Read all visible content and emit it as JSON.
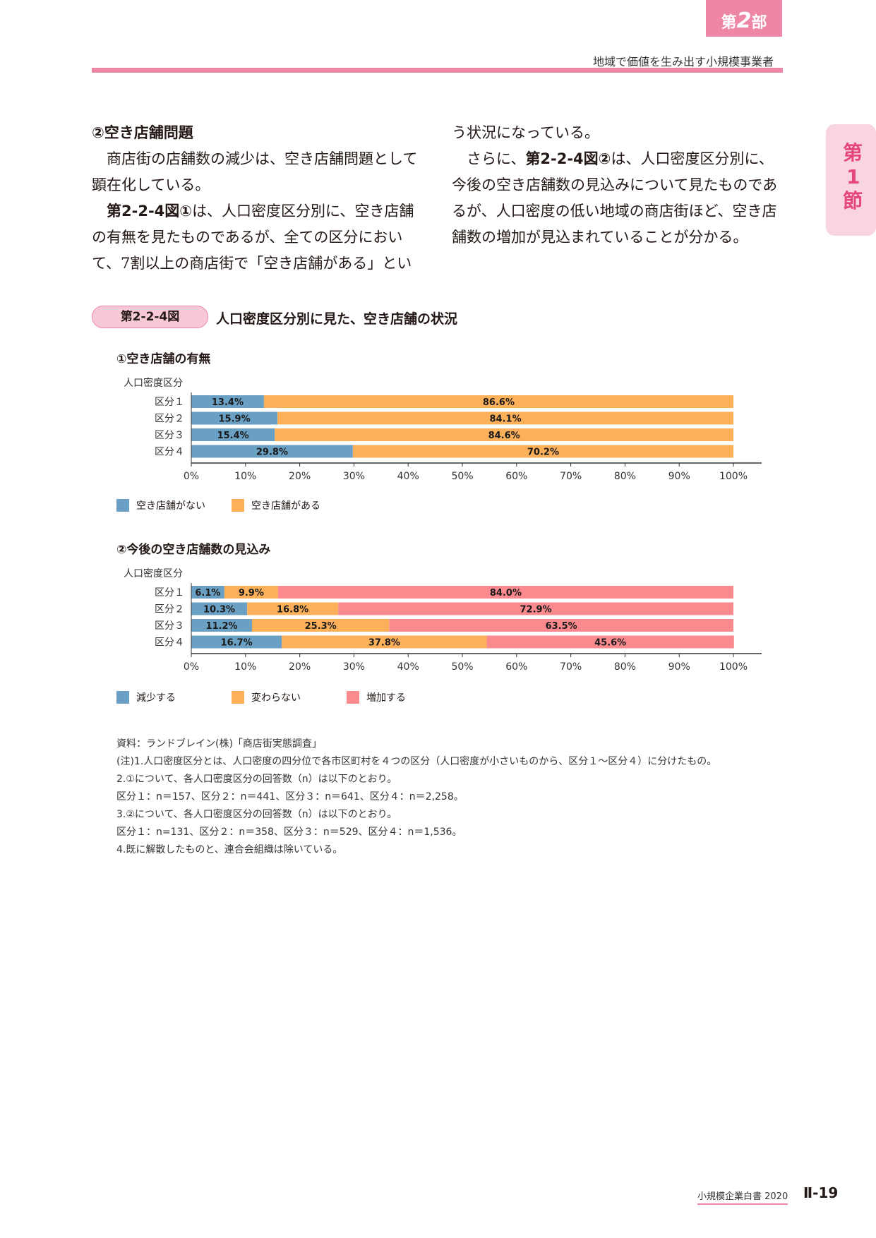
{
  "header": {
    "part_prefix": "第",
    "part_num": "2",
    "part_suffix": "部",
    "subtitle": "地域で価値を生み出す小規模事業者",
    "section_tab": [
      "第",
      "1",
      "節"
    ]
  },
  "body": {
    "left": {
      "heading": "②空き店舗問題",
      "p1": "商店街の店舗数の減少は、空き店舗問題として顕在化している。",
      "p2_ref": "第2-2-4図①",
      "p2": "は、人口密度区分別に、空き店舗の有無を見たものであるが、全ての区分において、7割以上の商店街で「空き店舗がある」とい"
    },
    "right": {
      "p1": "う状況になっている。",
      "p2_pre": "さらに、",
      "p2_ref": "第2-2-4図②",
      "p2": "は、人口密度区分別に、今後の空き店舗数の見込みについて見たものであるが、人口密度の低い地域の商店街ほど、空き店舗数の増加が見込まれていることが分かる。"
    }
  },
  "figure": {
    "badge": "第2-2-4図",
    "title": "人口密度区分別に見た、空き店舗の状況"
  },
  "chart_data": [
    {
      "type": "bar",
      "orientation": "horizontal",
      "stacked": true,
      "title": "①空き店舗の有無",
      "ylabel": "人口密度区分",
      "categories": [
        "区分１",
        "区分２",
        "区分３",
        "区分４"
      ],
      "series": [
        {
          "name": "空き店舗がない",
          "color": "#6aa0c4",
          "values": [
            13.4,
            15.9,
            15.4,
            29.8
          ]
        },
        {
          "name": "空き店舗がある",
          "color": "#fdb05a",
          "values": [
            86.6,
            84.1,
            84.6,
            70.2
          ]
        }
      ],
      "xticks": [
        "0%",
        "10%",
        "20%",
        "30%",
        "40%",
        "50%",
        "60%",
        "70%",
        "80%",
        "90%",
        "100%"
      ],
      "xlim": [
        0,
        100
      ],
      "legend": "bottom-left"
    },
    {
      "type": "bar",
      "orientation": "horizontal",
      "stacked": true,
      "title": "②今後の空き店舗数の見込み",
      "ylabel": "人口密度区分",
      "categories": [
        "区分１",
        "区分２",
        "区分３",
        "区分４"
      ],
      "series": [
        {
          "name": "減少する",
          "color": "#6aa0c4",
          "values": [
            6.1,
            10.3,
            11.2,
            16.7
          ]
        },
        {
          "name": "変わらない",
          "color": "#fdb05a",
          "values": [
            9.9,
            16.8,
            25.3,
            37.8
          ]
        },
        {
          "name": "増加する",
          "color": "#fb8a8e",
          "values": [
            84.0,
            72.9,
            63.5,
            45.6
          ]
        }
      ],
      "xticks": [
        "0%",
        "10%",
        "20%",
        "30%",
        "40%",
        "50%",
        "60%",
        "70%",
        "80%",
        "90%",
        "100%"
      ],
      "xlim": [
        0,
        100
      ],
      "legend": "bottom-left"
    }
  ],
  "notes": [
    "資料：ランドブレイン(株)「商店街実態調査」",
    "(注)1.人口密度区分とは、人口密度の四分位で各市区町村を４つの区分（人口密度が小さいものから、区分１～区分４）に分けたもの。",
    "2.①について、各人口密度区分の回答数（n）は以下のとおり。",
    "区分１：n＝157、区分２：n＝441、区分３：n＝641、区分４：n＝2,258。",
    "3.②について、各人口密度区分の回答数（n）は以下のとおり。",
    "区分１：n=131、区分２：n＝358、区分３：n＝529、区分４：n＝1,536。",
    "4.既に解散したものと、連合会組織は除いている。"
  ],
  "footer": {
    "book": "小規模企業白書 2020",
    "page": "Ⅱ-19"
  }
}
